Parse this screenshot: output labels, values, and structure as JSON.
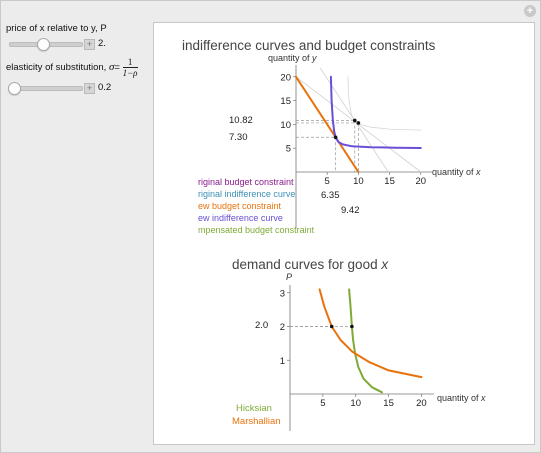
{
  "controls": {
    "price": {
      "label": "price of x relative to y, P",
      "value": "2.",
      "fraction": 0.47
    },
    "elasticity": {
      "label_prefix": "elasticity of substitution, ",
      "sigma": "σ",
      "eq": "=",
      "num": "1",
      "den": "1−ρ",
      "value": "0.2",
      "fraction": 0.02
    }
  },
  "chart1": {
    "title": "indifference curves and budget constraints",
    "ylabel_prefix": "quantity of ",
    "ylabel_var": "y",
    "xlabel_prefix": "quantity of ",
    "xlabel_var": "x",
    "xticks": [
      "5",
      "10",
      "15",
      "20"
    ],
    "yticks": [
      "5",
      "10",
      "15",
      "20"
    ],
    "y_markers": [
      "10.82",
      "7.30"
    ],
    "x_markers": [
      "6.35",
      "9.42"
    ],
    "legend": [
      {
        "text": "riginal budget constraint",
        "color": "#8a1a8a"
      },
      {
        "text": "riginal indifference curve",
        "color": "#3d8fb8"
      },
      {
        "text": "ew budget constraint",
        "color": "#e8720c"
      },
      {
        "text": "ew indifference curve",
        "color": "#6a4fd6"
      },
      {
        "text": "mpensated budget constraint",
        "color": "#7faa36"
      }
    ]
  },
  "chart2": {
    "title_prefix": "demand curves for good ",
    "title_var": "x",
    "ylabel": "P",
    "xlabel_prefix": "quantity of ",
    "xlabel_var": "x",
    "xticks": [
      "5",
      "10",
      "15",
      "20"
    ],
    "yticks": [
      "1",
      "2",
      "3"
    ],
    "y_marker": "2.0",
    "legend": [
      {
        "text": "Hicksian",
        "color": "#7faa36"
      },
      {
        "text": "Marshallian",
        "color": "#e8720c"
      }
    ]
  },
  "chart_data": [
    {
      "type": "line",
      "title": "indifference curves and budget constraints",
      "xlabel": "quantity of x",
      "ylabel": "quantity of y",
      "xlim": [
        0,
        21
      ],
      "ylim": [
        0,
        21
      ],
      "series": [
        {
          "name": "original budget constraint",
          "x": [
            0,
            20
          ],
          "y": [
            20,
            0
          ],
          "color": "#d0d0d0"
        },
        {
          "name": "compensated budget constraint",
          "x": [
            0,
            14.8
          ],
          "y": [
            29.6,
            0
          ],
          "color": "#d0d0d0"
        },
        {
          "name": "new budget constraint",
          "x": [
            0,
            10
          ],
          "y": [
            20,
            0
          ],
          "color": "#e8720c"
        },
        {
          "name": "new indifference curve",
          "x": [
            5.6,
            5.7,
            5.9,
            6.1,
            6.35,
            6.8,
            7.5,
            9,
            12,
            16,
            20
          ],
          "y": [
            20,
            15,
            11,
            8.6,
            7.3,
            6.3,
            5.8,
            5.4,
            5.2,
            5.1,
            5.05
          ],
          "color": "#6a4fd6"
        },
        {
          "name": "original indifference curve",
          "x": [
            8.3,
            8.5,
            8.9,
            9.42,
            10.3,
            12,
            15,
            20
          ],
          "y": [
            20,
            15,
            12,
            10.82,
            10,
            9.4,
            9.0,
            8.8
          ],
          "color": "#d6d6d6"
        }
      ],
      "points": [
        {
          "x": 6.35,
          "y": 7.3
        },
        {
          "x": 9.42,
          "y": 10.82
        },
        {
          "x": 10.0,
          "y": 10.3
        }
      ]
    },
    {
      "type": "line",
      "title": "demand curves for good x",
      "xlabel": "quantity of x",
      "ylabel": "P",
      "xlim": [
        0,
        21
      ],
      "ylim": [
        0,
        3.2
      ],
      "series": [
        {
          "name": "Hicksian",
          "x": [
            9.0,
            9.2,
            9.42,
            9.6,
            9.9,
            10.4,
            11.2,
            12.5,
            14.0
          ],
          "y": [
            3.1,
            2.6,
            2.0,
            1.6,
            1.2,
            0.8,
            0.45,
            0.2,
            0.05
          ],
          "color": "#7faa36"
        },
        {
          "name": "Marshallian",
          "x": [
            4.5,
            5.2,
            6.35,
            7.7,
            9.5,
            12,
            15,
            20
          ],
          "y": [
            3.1,
            2.6,
            2.0,
            1.6,
            1.25,
            0.95,
            0.7,
            0.5
          ],
          "color": "#e8720c"
        }
      ],
      "points": [
        {
          "x": 6.35,
          "y": 2.0
        },
        {
          "x": 9.42,
          "y": 2.0
        }
      ]
    }
  ]
}
